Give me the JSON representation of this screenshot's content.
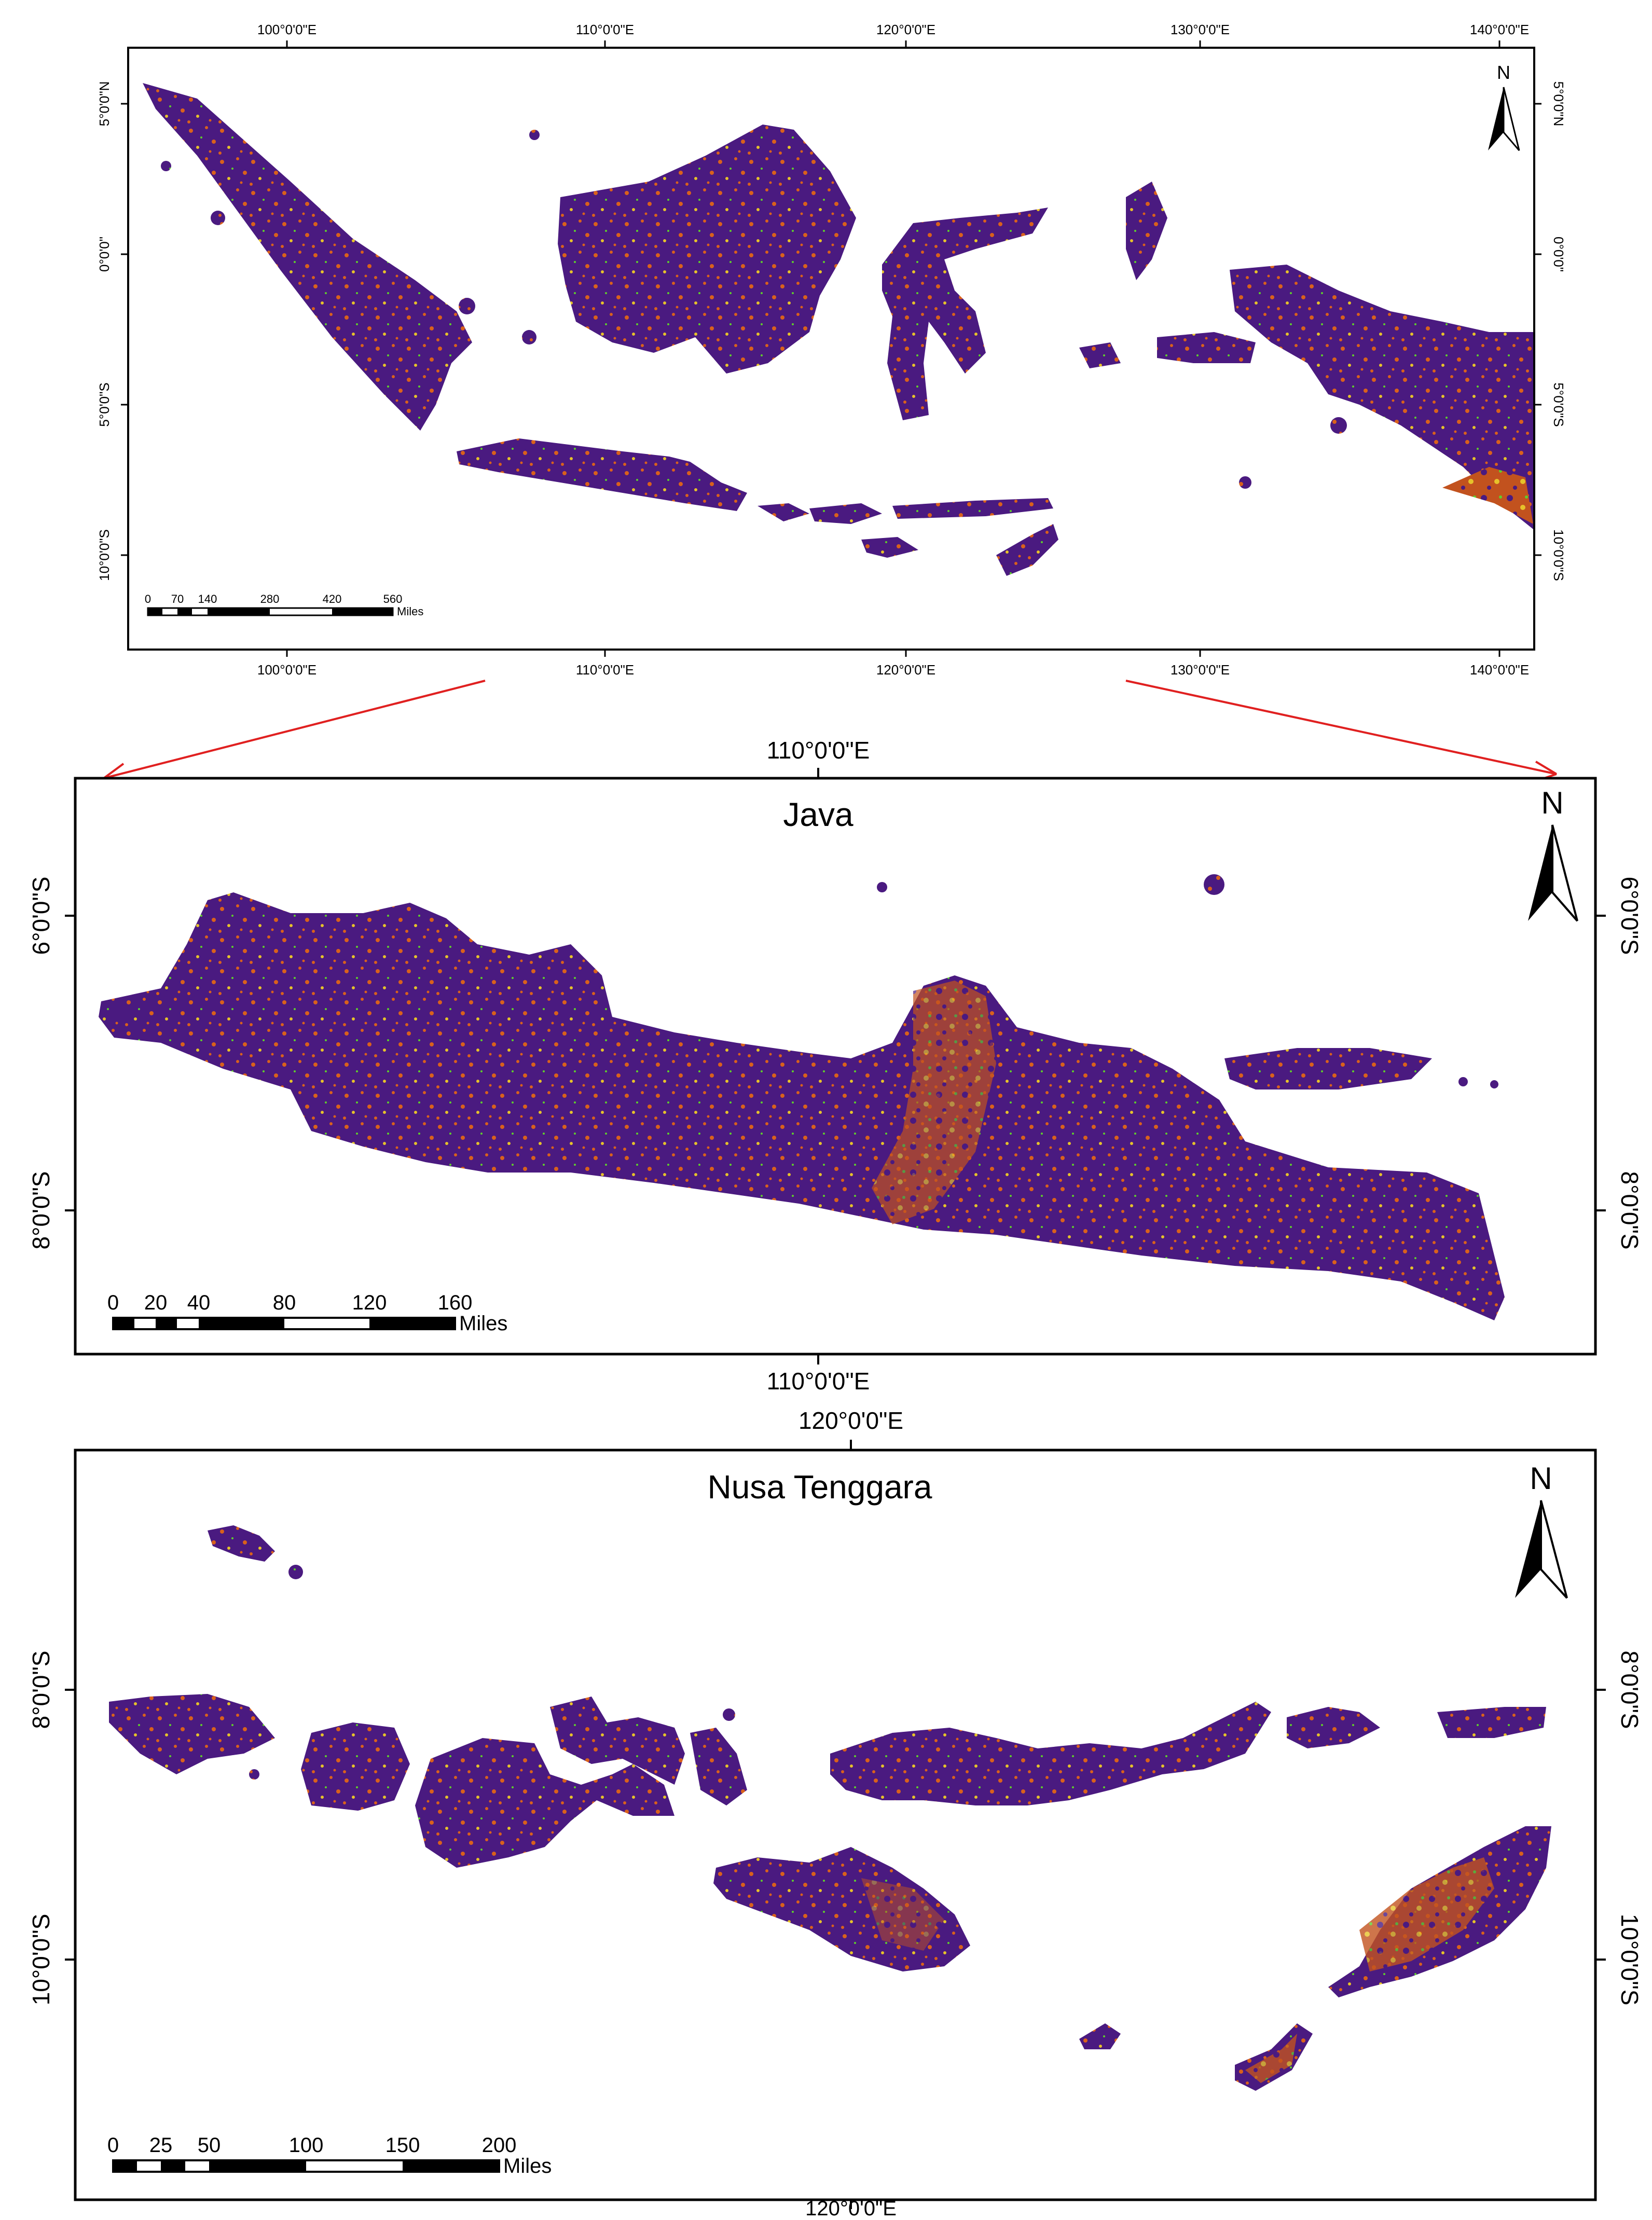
{
  "colors": {
    "land": "#4a1a80",
    "orange": "#d9611c",
    "yellow": "#e6c22a",
    "green": "#5fce2c",
    "frame": "#000000",
    "arrow": "#e02020",
    "scale_white": "#ffffff",
    "scale_black": "#000000"
  },
  "icons": [
    "north-arrow-icon",
    "scale-bar-icon"
  ],
  "overview": {
    "north_label": "N",
    "top_lon_labels": [
      "100°0'0\"E",
      "110°0'0\"E",
      "120°0'0\"E",
      "130°0'0\"E",
      "140°0'0\"E"
    ],
    "bottom_lon_labels": [
      "100°0'0\"E",
      "110°0'0\"E",
      "120°0'0\"E",
      "130°0'0\"E",
      "140°0'0\"E"
    ],
    "lat_labels": [
      "5°0'0\"N",
      "0°0'0\"",
      "5°0'0\"S",
      "10°0'0\"S"
    ],
    "scale": {
      "ticks": [
        "0",
        "70",
        "140",
        "280",
        "420",
        "560"
      ],
      "unit": "Miles"
    }
  },
  "java": {
    "title": "Java",
    "north_label": "N",
    "top_lon_label": "110°0'0\"E",
    "bottom_lon_label": "110°0'0\"E",
    "lat_labels": [
      "6°0'0\"S",
      "8°0'0\"S"
    ],
    "scale": {
      "ticks": [
        "0",
        "20",
        "40",
        "80",
        "120",
        "160"
      ],
      "unit": "Miles"
    }
  },
  "nusa": {
    "title": "Nusa Tenggara",
    "north_label": "N",
    "top_lon_label": "120°0'0\"E",
    "bottom_lon_label": "120°0'0\"E",
    "lat_labels": [
      "8°0'0\"S",
      "10°0'0\"S"
    ],
    "scale": {
      "ticks": [
        "0",
        "25",
        "50",
        "100",
        "150",
        "200"
      ],
      "unit": "Miles"
    }
  }
}
